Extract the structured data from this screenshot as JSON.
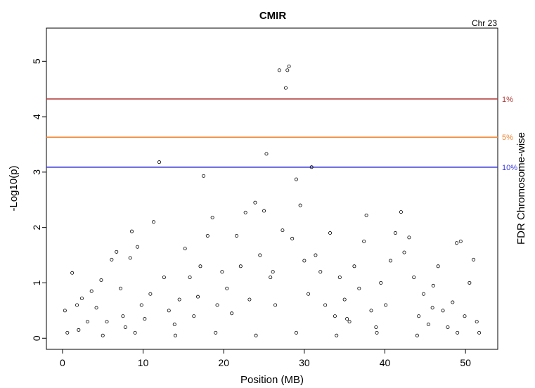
{
  "chart_data": {
    "type": "scatter",
    "title": "CMIR",
    "corner_label": "Chr 23",
    "xlabel": "Position (MB)",
    "ylabel": "-Log10(p)",
    "right_label": "FDR Chromosome-wise",
    "xlim": [
      -2,
      54
    ],
    "ylim": [
      -0.2,
      5.6
    ],
    "x_ticks": [
      0,
      10,
      20,
      30,
      40,
      50
    ],
    "y_ticks": [
      0,
      1,
      2,
      3,
      4,
      5
    ],
    "thresholds": [
      {
        "label": "1%",
        "y": 4.32,
        "color": "#b03a3a"
      },
      {
        "label": "5%",
        "y": 3.63,
        "color": "#f08a3c"
      },
      {
        "label": "10%",
        "y": 3.09,
        "color": "#3838d8"
      }
    ],
    "points": [
      [
        0.3,
        0.5
      ],
      [
        0.6,
        0.1
      ],
      [
        1.2,
        1.18
      ],
      [
        1.8,
        0.6
      ],
      [
        2.4,
        0.72
      ],
      [
        3.1,
        0.3
      ],
      [
        3.6,
        0.85
      ],
      [
        4.2,
        0.55
      ],
      [
        4.8,
        1.05
      ],
      [
        5.5,
        0.3
      ],
      [
        6.1,
        1.42
      ],
      [
        6.7,
        1.56
      ],
      [
        7.2,
        0.9
      ],
      [
        7.8,
        0.2
      ],
      [
        8.4,
        1.45
      ],
      [
        8.6,
        1.93
      ],
      [
        9.3,
        1.65
      ],
      [
        9.8,
        0.6
      ],
      [
        10.2,
        0.35
      ],
      [
        10.9,
        0.8
      ],
      [
        11.3,
        2.1
      ],
      [
        12.0,
        3.18
      ],
      [
        12.6,
        1.1
      ],
      [
        13.2,
        0.5
      ],
      [
        13.9,
        0.25
      ],
      [
        14.5,
        0.7
      ],
      [
        15.2,
        1.62
      ],
      [
        15.8,
        1.1
      ],
      [
        16.3,
        0.4
      ],
      [
        17.1,
        1.3
      ],
      [
        17.5,
        2.93
      ],
      [
        18.0,
        1.85
      ],
      [
        18.6,
        2.18
      ],
      [
        19.2,
        0.6
      ],
      [
        19.8,
        1.2
      ],
      [
        20.4,
        0.9
      ],
      [
        21.0,
        0.45
      ],
      [
        21.6,
        1.85
      ],
      [
        22.1,
        1.3
      ],
      [
        22.7,
        2.27
      ],
      [
        23.2,
        0.7
      ],
      [
        23.9,
        2.45
      ],
      [
        24.5,
        1.5
      ],
      [
        25.0,
        2.3
      ],
      [
        25.3,
        3.33
      ],
      [
        25.8,
        1.1
      ],
      [
        26.4,
        0.6
      ],
      [
        26.9,
        4.84
      ],
      [
        27.3,
        1.95
      ],
      [
        27.7,
        4.52
      ],
      [
        27.9,
        4.84
      ],
      [
        28.1,
        4.91
      ],
      [
        28.5,
        1.8
      ],
      [
        29.0,
        2.87
      ],
      [
        29.5,
        2.4
      ],
      [
        30.0,
        1.4
      ],
      [
        30.5,
        0.8
      ],
      [
        30.9,
        3.09
      ],
      [
        31.4,
        1.5
      ],
      [
        32.0,
        1.2
      ],
      [
        32.6,
        0.6
      ],
      [
        33.2,
        1.9
      ],
      [
        33.8,
        0.4
      ],
      [
        34.4,
        1.1
      ],
      [
        35.0,
        0.7
      ],
      [
        35.6,
        0.3
      ],
      [
        36.2,
        1.3
      ],
      [
        36.8,
        0.9
      ],
      [
        37.4,
        1.75
      ],
      [
        37.7,
        2.22
      ],
      [
        38.3,
        0.5
      ],
      [
        38.9,
        0.2
      ],
      [
        39.5,
        1.0
      ],
      [
        40.1,
        0.6
      ],
      [
        40.7,
        1.4
      ],
      [
        41.3,
        1.9
      ],
      [
        42.0,
        2.28
      ],
      [
        42.4,
        1.55
      ],
      [
        43.0,
        1.82
      ],
      [
        43.6,
        1.1
      ],
      [
        44.2,
        0.4
      ],
      [
        44.8,
        0.8
      ],
      [
        45.4,
        0.25
      ],
      [
        46.0,
        0.95
      ],
      [
        46.6,
        1.3
      ],
      [
        47.2,
        0.5
      ],
      [
        47.8,
        0.2
      ],
      [
        48.4,
        0.65
      ],
      [
        48.9,
        1.72
      ],
      [
        49.4,
        1.75
      ],
      [
        49.9,
        0.4
      ],
      [
        50.5,
        1.0
      ],
      [
        51.0,
        1.42
      ],
      [
        51.4,
        0.3
      ],
      [
        51.7,
        0.1
      ],
      [
        2.0,
        0.15
      ],
      [
        5.0,
        0.05
      ],
      [
        9.0,
        0.1
      ],
      [
        14.0,
        0.05
      ],
      [
        19.0,
        0.1
      ],
      [
        24.0,
        0.05
      ],
      [
        29.0,
        0.1
      ],
      [
        34.0,
        0.05
      ],
      [
        39.0,
        0.1
      ],
      [
        44.0,
        0.05
      ],
      [
        49.0,
        0.1
      ],
      [
        7.5,
        0.4
      ],
      [
        16.8,
        0.75
      ],
      [
        26.1,
        1.2
      ],
      [
        35.3,
        0.35
      ],
      [
        45.9,
        0.55
      ]
    ]
  }
}
